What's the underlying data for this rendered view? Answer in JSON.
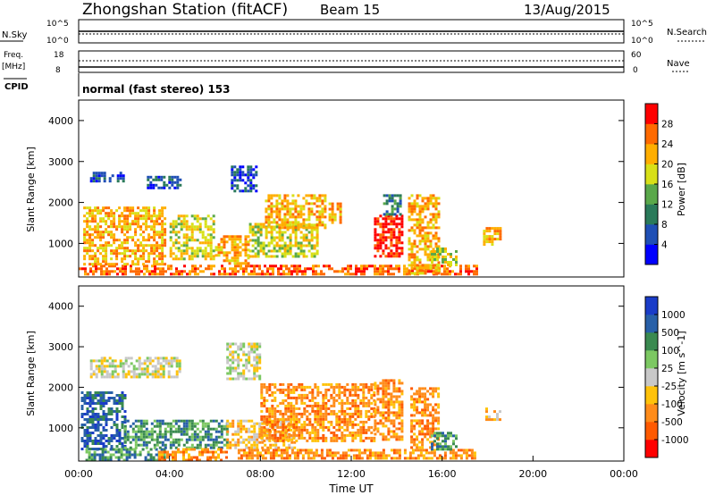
{
  "header": {
    "station": "Zhongshan Station (fitACF)",
    "beam": "Beam 15",
    "date": "13/Aug/2015"
  },
  "strips": {
    "nsky_label": "N.Sky",
    "nsearch_label": "N.Search",
    "nsky_ticks": [
      "10^5",
      "10^0"
    ],
    "nsearch_ticks": [
      "10^5",
      "10^0"
    ],
    "freq_label": "Freq.",
    "freq_unit": "[MHz]",
    "freq_ticks": [
      "18",
      "8"
    ],
    "nave_label": "Nave",
    "nave_ticks": [
      "60",
      "0"
    ],
    "cpid_label": "CPID",
    "cpid_text": "normal (fast stereo) 153"
  },
  "chart_data": [
    {
      "type": "heatmap",
      "name": "power",
      "ylabel": "Slant Range [km]",
      "yticks": [
        1000,
        2000,
        3000,
        4000
      ],
      "ylim": [
        180,
        4500
      ],
      "xlim": [
        0,
        24
      ],
      "colorbar": {
        "label": "Power [dB]",
        "ticks": [
          "28",
          "24",
          "20",
          "16",
          "12",
          "8",
          "4"
        ],
        "colors": [
          "#0000ff",
          "#1f4fb5",
          "#2a7a5a",
          "#5aa84a",
          "#d8e018",
          "#ffae00",
          "#ff6a00",
          "#ff0000"
        ]
      },
      "regions": [
        {
          "t": [
            0.0,
            17.5
          ],
          "r": [
            230,
            480
          ],
          "level": 6
        },
        {
          "t": [
            0.2,
            3.8
          ],
          "r": [
            480,
            1900
          ],
          "level": 5
        },
        {
          "t": [
            0.5,
            2.0
          ],
          "r": [
            2500,
            2750
          ],
          "level": 1
        },
        {
          "t": [
            3.0,
            4.5
          ],
          "r": [
            2350,
            2650
          ],
          "level": 1
        },
        {
          "t": [
            4.0,
            6.0
          ],
          "r": [
            600,
            1700
          ],
          "level": 4
        },
        {
          "t": [
            6.0,
            7.5
          ],
          "r": [
            500,
            1200
          ],
          "level": 5
        },
        {
          "t": [
            6.7,
            7.8
          ],
          "r": [
            2300,
            2900
          ],
          "level": 1
        },
        {
          "t": [
            7.5,
            10.5
          ],
          "r": [
            700,
            1500
          ],
          "level": 4
        },
        {
          "t": [
            8.2,
            10.8
          ],
          "r": [
            1400,
            2200
          ],
          "level": 5
        },
        {
          "t": [
            11.0,
            11.5
          ],
          "r": [
            1500,
            2000
          ],
          "level": 5
        },
        {
          "t": [
            13.0,
            14.2
          ],
          "r": [
            700,
            1700
          ],
          "level": 7
        },
        {
          "t": [
            13.4,
            14.2
          ],
          "r": [
            1700,
            2200
          ],
          "level": 2
        },
        {
          "t": [
            14.5,
            15.8
          ],
          "r": [
            300,
            2200
          ],
          "level": 5
        },
        {
          "t": [
            15.5,
            16.6
          ],
          "r": [
            500,
            900
          ],
          "level": 4
        },
        {
          "t": [
            17.8,
            18.6
          ],
          "r": [
            1000,
            1400
          ],
          "level": 5
        }
      ]
    },
    {
      "type": "heatmap",
      "name": "velocity",
      "xlabel": "Time UT",
      "ylabel": "Slant Range [km]",
      "yticks": [
        1000,
        2000,
        3000,
        4000
      ],
      "xticks": [
        "00:00",
        "04:00",
        "08:00",
        "12:00",
        "16:00",
        "20:00",
        "00:00"
      ],
      "ylim": [
        180,
        4500
      ],
      "xlim": [
        0,
        24
      ],
      "colorbar": {
        "label": "Velocity [m s^-1]",
        "ticks": [
          "1000",
          "500",
          "100",
          "25",
          "-25",
          "-100",
          "-500",
          "-1000"
        ],
        "colors": [
          "#ff0000",
          "#ff5a00",
          "#ff8c1a",
          "#ffc20a",
          "#c8c8c8",
          "#7cc862",
          "#3a8a50",
          "#2860a8",
          "#1a3cc8"
        ]
      },
      "regions": [
        {
          "t": [
            0.1,
            2.0
          ],
          "r": [
            500,
            1900
          ],
          "level": 7
        },
        {
          "t": [
            0.3,
            3.8
          ],
          "r": [
            230,
            500
          ],
          "level": 6
        },
        {
          "t": [
            0.5,
            4.5
          ],
          "r": [
            2250,
            2750
          ],
          "level": 4
        },
        {
          "t": [
            2.0,
            6.5
          ],
          "r": [
            500,
            1200
          ],
          "level": 6
        },
        {
          "t": [
            3.5,
            6.5
          ],
          "r": [
            230,
            500
          ],
          "level": 2
        },
        {
          "t": [
            6.5,
            8.0
          ],
          "r": [
            2200,
            3100
          ],
          "level": 4
        },
        {
          "t": [
            6.5,
            9.5
          ],
          "r": [
            500,
            1200
          ],
          "level": 3
        },
        {
          "t": [
            8.0,
            13.0
          ],
          "r": [
            700,
            2100
          ],
          "level": 2
        },
        {
          "t": [
            7.0,
            17.5
          ],
          "r": [
            250,
            480
          ],
          "level": 2
        },
        {
          "t": [
            13.0,
            14.2
          ],
          "r": [
            700,
            2200
          ],
          "level": 2
        },
        {
          "t": [
            14.6,
            15.8
          ],
          "r": [
            500,
            2000
          ],
          "level": 2
        },
        {
          "t": [
            15.5,
            16.6
          ],
          "r": [
            500,
            900
          ],
          "level": 6
        },
        {
          "t": [
            17.9,
            18.5
          ],
          "r": [
            1200,
            1500
          ],
          "level": 3
        }
      ]
    }
  ]
}
